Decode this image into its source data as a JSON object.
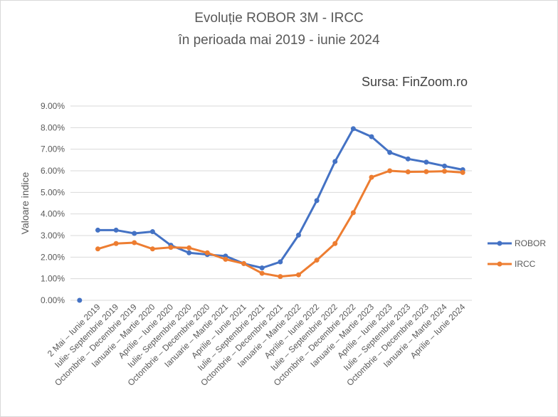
{
  "chart_data": {
    "type": "line",
    "title_line1": "Evoluție ROBOR 3M - IRCC",
    "title_line2": "în perioada mai 2019 - iunie 2024",
    "source": "Sursa: FinZoom.ro",
    "ylabel": "Valoare  indice",
    "xlabel": "",
    "ylim": [
      0,
      9
    ],
    "y_ticks": [
      "0.00%",
      "1.00%",
      "2.00%",
      "3.00%",
      "4.00%",
      "5.00%",
      "6.00%",
      "7.00%",
      "8.00%",
      "9.00%"
    ],
    "grid": true,
    "legend_position": "right",
    "categories": [
      "2 Mai – Iunie 2019",
      "Iulie- Septembrie 2019",
      "Octombrie – Decembrie 2019",
      "Ianuarie – Martie 2020",
      "Aprilie – Iunie 2020",
      "Iulie- Septembrie 2020",
      "Octombrie – Decembrie 2020",
      "Ianuarie – Martie 2021",
      "Aprilie – Iunie 2021",
      "Iulie – Septembrie 2021",
      "Octombrie – Decembrie 2021",
      "Ianuarie – Martie 2022",
      "Aprilie – Iunie 2022",
      "Iulie – Septembrie 2022",
      "Octombrie – Decembrie 2022",
      "Ianuarie – Martie 2023",
      "Aprilie – Iunie 2023",
      "Iulie – Septembrie 2023",
      "Octombrie – Decembrie 2023",
      "Ianuarie – Martie 2024",
      "Aprilie – Iunie 2024"
    ],
    "origin_point": {
      "x_index": -1,
      "value": 0.0
    },
    "series": [
      {
        "name": "ROBOR",
        "color": "#4472c4",
        "values": [
          3.25,
          3.25,
          3.1,
          3.18,
          2.55,
          2.2,
          2.12,
          2.05,
          1.7,
          1.5,
          1.78,
          3.02,
          4.62,
          6.43,
          7.95,
          7.58,
          6.85,
          6.55,
          6.4,
          6.22,
          6.05
        ]
      },
      {
        "name": "IRCC",
        "color": "#ed7d31",
        "values": [
          2.38,
          2.63,
          2.67,
          2.38,
          2.45,
          2.43,
          2.2,
          1.9,
          1.7,
          1.25,
          1.1,
          1.18,
          1.86,
          2.63,
          4.06,
          5.7,
          6.0,
          5.95,
          5.96,
          5.98,
          5.92
        ]
      }
    ]
  }
}
